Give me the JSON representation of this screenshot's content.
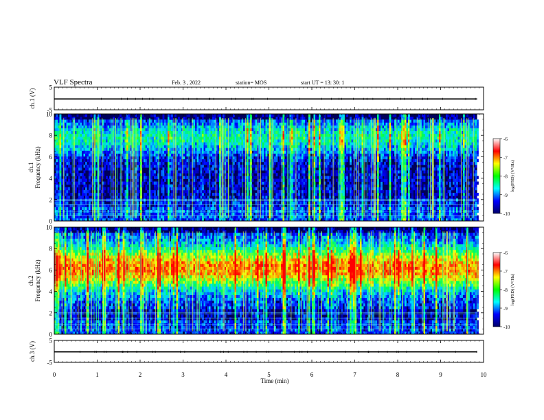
{
  "header": {
    "title": "VLF Spectra",
    "date": "Feb. 3  , 2022",
    "station": "station= MOS",
    "start": "start  UT  =   13: 30: 1"
  },
  "colorbar": {
    "label": "log(PSD) (V²/Hz)",
    "ticks": [
      "-6",
      "-7",
      "-8",
      "-9",
      "-10"
    ],
    "colors": [
      "#ffffff",
      "#ff0000",
      "#ffff00",
      "#00ff00",
      "#00ffff",
      "#0000ff",
      "#000066"
    ]
  },
  "chart_data": [
    {
      "type": "line",
      "title": "",
      "ylabel": "ch.1 (V)",
      "ylim": [
        -5,
        5
      ],
      "yticks": [
        "5",
        "-5"
      ],
      "x": [
        0,
        9.85
      ],
      "series": [
        {
          "values": [
            -0.2,
            -0.2
          ]
        }
      ]
    },
    {
      "type": "heatmap",
      "ylabel": "ch.1\nFrequency (kHz)",
      "ylim": [
        0,
        10
      ],
      "yticks": [
        "0",
        "2",
        "4",
        "6",
        "8",
        "10"
      ],
      "xlim": [
        0,
        10
      ],
      "data_end_min": 9.85,
      "value_range": [
        -10,
        -6
      ]
    },
    {
      "type": "heatmap",
      "ylabel": "ch.2\nFrequency (kHz)",
      "ylim": [
        0,
        10
      ],
      "yticks": [
        "0",
        "2",
        "4",
        "6",
        "8",
        "10"
      ],
      "xlim": [
        0,
        10
      ],
      "data_end_min": 9.85,
      "value_range": [
        -10,
        -6
      ]
    },
    {
      "type": "line",
      "ylabel": "ch.3 (V)",
      "ylim": [
        -5,
        5
      ],
      "yticks": [
        "5",
        "-5"
      ],
      "x": [
        0,
        9.85
      ],
      "series": [
        {
          "values": [
            -0.2,
            -0.2
          ]
        }
      ]
    }
  ],
  "xaxis": {
    "label": "Time  (min)",
    "ticks": [
      "0",
      "1",
      "2",
      "3",
      "4",
      "5",
      "6",
      "7",
      "8",
      "9",
      "10"
    ]
  }
}
